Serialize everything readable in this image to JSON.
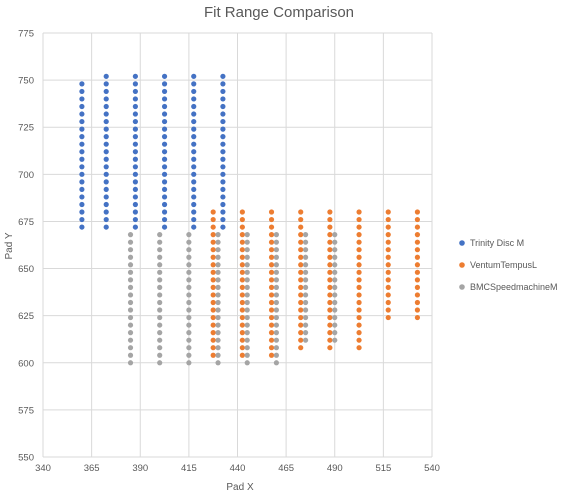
{
  "chart_data": {
    "type": "scatter",
    "title": "Fit Range Comparison",
    "xlabel": "Pad X",
    "ylabel": "Pad Y",
    "xlim": [
      340,
      540
    ],
    "ylim": [
      550,
      775
    ],
    "x_ticks": [
      340,
      365,
      390,
      415,
      440,
      465,
      490,
      515,
      540
    ],
    "y_ticks": [
      550,
      575,
      600,
      625,
      650,
      675,
      700,
      725,
      750,
      775
    ],
    "grid": true,
    "legend_position": "right",
    "series": [
      {
        "name": "Trinity Disc M",
        "color": "#4472C4",
        "columns": [
          {
            "x": 360,
            "y_min": 672,
            "y_max": 748,
            "step": 4
          },
          {
            "x": 372.5,
            "y_min": 672,
            "y_max": 752,
            "step": 4
          },
          {
            "x": 387.5,
            "y_min": 672,
            "y_max": 752,
            "step": 4
          },
          {
            "x": 402.5,
            "y_min": 672,
            "y_max": 752,
            "step": 4
          },
          {
            "x": 417.5,
            "y_min": 672,
            "y_max": 752,
            "step": 4
          },
          {
            "x": 432.5,
            "y_min": 672,
            "y_max": 752,
            "step": 4
          }
        ]
      },
      {
        "name": "VentumTempusL",
        "color": "#ED7D31",
        "columns": [
          {
            "x": 427.5,
            "y_min": 604,
            "y_max": 680,
            "step": 4
          },
          {
            "x": 442.5,
            "y_min": 604,
            "y_max": 680,
            "step": 4
          },
          {
            "x": 457.5,
            "y_min": 604,
            "y_max": 680,
            "step": 4
          },
          {
            "x": 472.5,
            "y_min": 608,
            "y_max": 680,
            "step": 4
          },
          {
            "x": 487.5,
            "y_min": 608,
            "y_max": 680,
            "step": 4
          },
          {
            "x": 502.5,
            "y_min": 608,
            "y_max": 680,
            "step": 4
          },
          {
            "x": 517.5,
            "y_min": 624,
            "y_max": 680,
            "step": 4
          },
          {
            "x": 532.5,
            "y_min": 624,
            "y_max": 680,
            "step": 4
          }
        ]
      },
      {
        "name": "BMCSpeedmachineM",
        "color": "#A5A5A5",
        "columns": [
          {
            "x": 385,
            "y_min": 600,
            "y_max": 668,
            "step": 4
          },
          {
            "x": 400,
            "y_min": 600,
            "y_max": 668,
            "step": 4
          },
          {
            "x": 415,
            "y_min": 600,
            "y_max": 668,
            "step": 4
          },
          {
            "x": 430,
            "y_min": 600,
            "y_max": 668,
            "step": 4
          },
          {
            "x": 445,
            "y_min": 600,
            "y_max": 668,
            "step": 4
          },
          {
            "x": 460,
            "y_min": 600,
            "y_max": 668,
            "step": 4
          },
          {
            "x": 475,
            "y_min": 612,
            "y_max": 668,
            "step": 4
          },
          {
            "x": 490,
            "y_min": 612,
            "y_max": 668,
            "step": 4
          }
        ]
      }
    ]
  }
}
